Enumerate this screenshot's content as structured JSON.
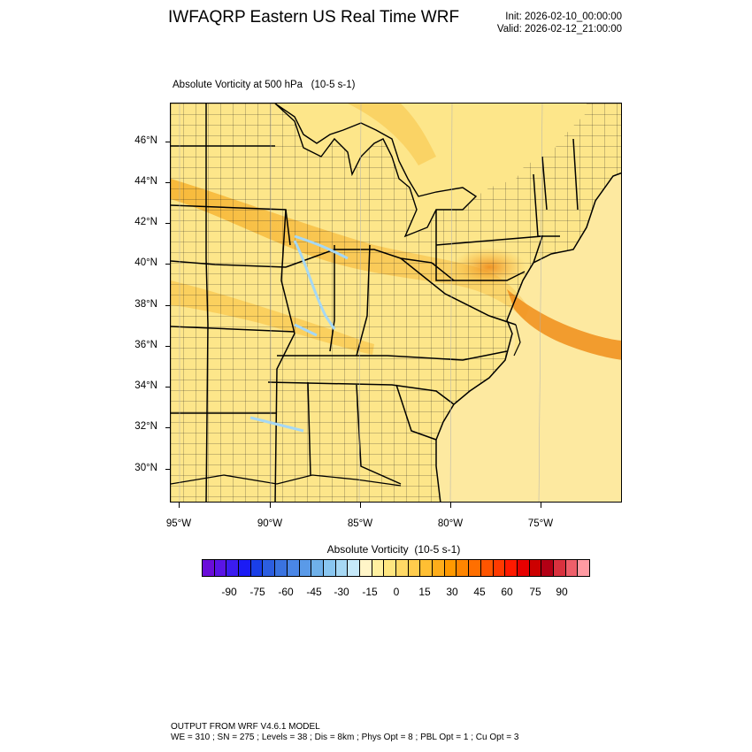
{
  "header": {
    "title": "IWFAQRP Eastern US Real Time WRF",
    "init": "Init: 2026-02-10_00:00:00",
    "valid": "Valid: 2026-02-12_21:00:00"
  },
  "field": {
    "title": "Absolute Vorticity at 500 hPa   (10-5 s-1)"
  },
  "map": {
    "lat_labels": [
      "46°N",
      "44°N",
      "42°N",
      "40°N",
      "38°N",
      "36°N",
      "34°N",
      "32°N",
      "30°N"
    ],
    "lon_labels": [
      "95°W",
      "90°W",
      "85°W",
      "80°W",
      "75°W"
    ],
    "region": "Eastern United States",
    "colors": {
      "background_field": "#fde68a",
      "band_field": "#fbbf24",
      "peak_field": "#f59e0b",
      "water": "#aedcf5",
      "borders": "#000000"
    }
  },
  "colorbar": {
    "title": "Absolute Vorticity  (10-5 s-1)",
    "labels": [
      "-90",
      "-75",
      "-60",
      "-45",
      "-30",
      "-15",
      "0",
      "15",
      "30",
      "45",
      "60",
      "75",
      "90"
    ],
    "colors": [
      "#6a0dd9",
      "#5a14e6",
      "#3b1cf0",
      "#1b1bf5",
      "#1a3fe8",
      "#2c5ee0",
      "#3a73e0",
      "#4a86e6",
      "#5a9ae8",
      "#6fb1ea",
      "#89c6f0",
      "#a6d8f4",
      "#c6e9fa",
      "#fff5c8",
      "#fff0a0",
      "#ffe680",
      "#ffd966",
      "#ffcc4d",
      "#ffbf33",
      "#ffad1a",
      "#ff9900",
      "#ff8500",
      "#ff6f00",
      "#ff5500",
      "#ff3a00",
      "#ff1a00",
      "#e60000",
      "#cc0000",
      "#b30015",
      "#d9313e",
      "#ee5f6a",
      "#ff9aa2"
    ]
  },
  "footer": {
    "line1": "OUTPUT FROM WRF V4.6.1 MODEL",
    "line2": "WE = 310 ; SN = 275 ; Levels = 38 ; Dis = 8km ; Phys Opt = 8 ; PBL Opt = 1 ; Cu Opt = 3"
  }
}
